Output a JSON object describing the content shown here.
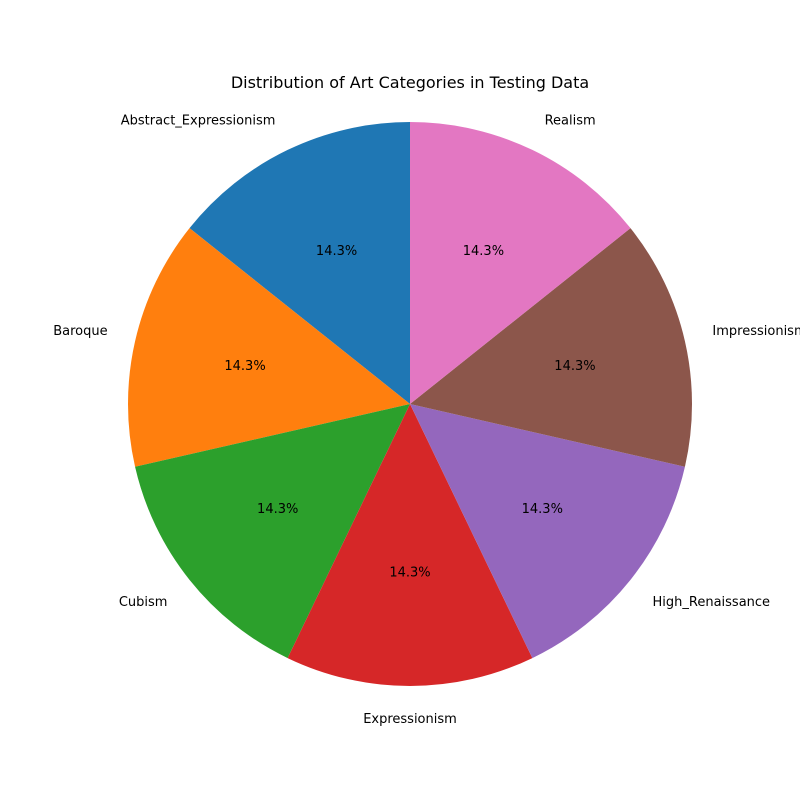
{
  "chart_data": {
    "type": "pie",
    "title": "Distribution of Art Categories in Testing Data",
    "categories": [
      "Abstract_Expressionism",
      "Baroque",
      "Cubism",
      "Expressionism",
      "High_Renaissance",
      "Impressionism",
      "Realism"
    ],
    "values": [
      14.3,
      14.3,
      14.3,
      14.3,
      14.3,
      14.3,
      14.3
    ],
    "value_labels": [
      "14.3%",
      "14.3%",
      "14.3%",
      "14.3%",
      "14.3%",
      "14.3%",
      "14.3%"
    ],
    "colors": [
      "#1f77b4",
      "#ff7f0e",
      "#2ca02c",
      "#d62728",
      "#9467bd",
      "#8c564b",
      "#e377c2"
    ],
    "start_angle": 90,
    "direction": "counterclockwise",
    "legend": "none"
  }
}
